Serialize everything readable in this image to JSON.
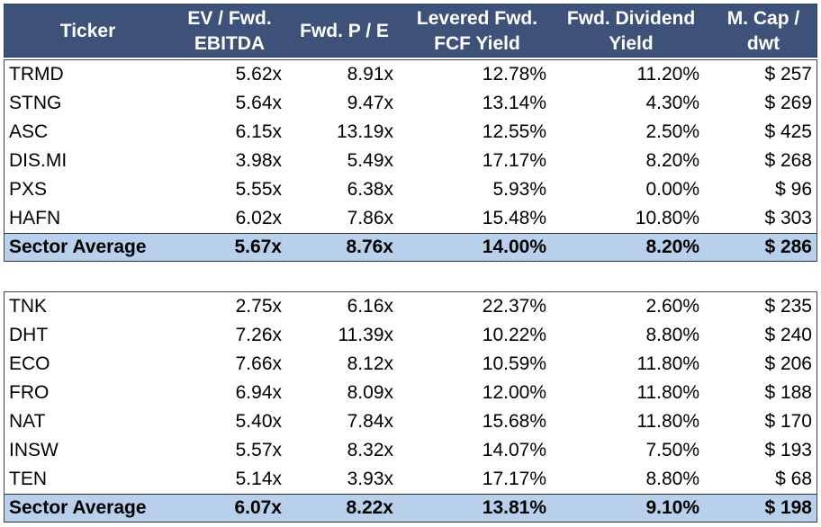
{
  "header": {
    "ticker": "Ticker",
    "ev_line1": "EV / Fwd.",
    "ev_line2": "EBITDA",
    "pe": "Fwd. P / E",
    "fcf_line1": "Levered Fwd.",
    "fcf_line2": "FCF Yield",
    "div_line1": "Fwd. Dividend",
    "div_line2": "Yield",
    "mcap_line1": "M. Cap /",
    "mcap_line2": "dwt"
  },
  "group1": {
    "rows": [
      {
        "ticker": "TRMD",
        "ev": "5.62x",
        "pe": "8.91x",
        "fcf": "12.78%",
        "div": "11.20%",
        "mcap": "$ 257"
      },
      {
        "ticker": "STNG",
        "ev": "5.64x",
        "pe": "9.47x",
        "fcf": "13.14%",
        "div": "4.30%",
        "mcap": "$ 269"
      },
      {
        "ticker": "ASC",
        "ev": "6.15x",
        "pe": "13.19x",
        "fcf": "12.55%",
        "div": "2.50%",
        "mcap": "$ 425"
      },
      {
        "ticker": "DIS.MI",
        "ev": "3.98x",
        "pe": "5.49x",
        "fcf": "17.17%",
        "div": "8.20%",
        "mcap": "$ 268"
      },
      {
        "ticker": "PXS",
        "ev": "5.55x",
        "pe": "6.38x",
        "fcf": "5.93%",
        "div": "0.00%",
        "mcap": "$ 96"
      },
      {
        "ticker": "HAFN",
        "ev": "6.02x",
        "pe": "7.86x",
        "fcf": "15.48%",
        "div": "10.80%",
        "mcap": "$ 303"
      }
    ],
    "average": {
      "label": "Sector Average",
      "ev": "5.67x",
      "pe": "8.76x",
      "fcf": "14.00%",
      "div": "8.20%",
      "mcap": "$ 286"
    }
  },
  "group2": {
    "rows": [
      {
        "ticker": "TNK",
        "ev": "2.75x",
        "pe": "6.16x",
        "fcf": "22.37%",
        "div": "2.60%",
        "mcap": "$ 235"
      },
      {
        "ticker": "DHT",
        "ev": "7.26x",
        "pe": "11.39x",
        "fcf": "10.22%",
        "div": "8.80%",
        "mcap": "$ 240"
      },
      {
        "ticker": "ECO",
        "ev": "7.66x",
        "pe": "8.12x",
        "fcf": "10.59%",
        "div": "11.80%",
        "mcap": "$ 206"
      },
      {
        "ticker": "FRO",
        "ev": "6.94x",
        "pe": "8.09x",
        "fcf": "12.00%",
        "div": "11.80%",
        "mcap": "$ 188"
      },
      {
        "ticker": "NAT",
        "ev": "5.40x",
        "pe": "7.84x",
        "fcf": "15.68%",
        "div": "11.80%",
        "mcap": "$ 170"
      },
      {
        "ticker": "INSW",
        "ev": "5.57x",
        "pe": "8.32x",
        "fcf": "14.07%",
        "div": "7.50%",
        "mcap": "$ 193"
      },
      {
        "ticker": "TEN",
        "ev": "5.14x",
        "pe": "3.93x",
        "fcf": "17.17%",
        "div": "8.80%",
        "mcap": "$ 68"
      }
    ],
    "average": {
      "label": "Sector Average",
      "ev": "6.07x",
      "pe": "8.22x",
      "fcf": "13.81%",
      "div": "9.10%",
      "mcap": "$ 198"
    }
  },
  "colors": {
    "header_bg": "#3d5179",
    "average_bg": "#b8d0ec"
  }
}
